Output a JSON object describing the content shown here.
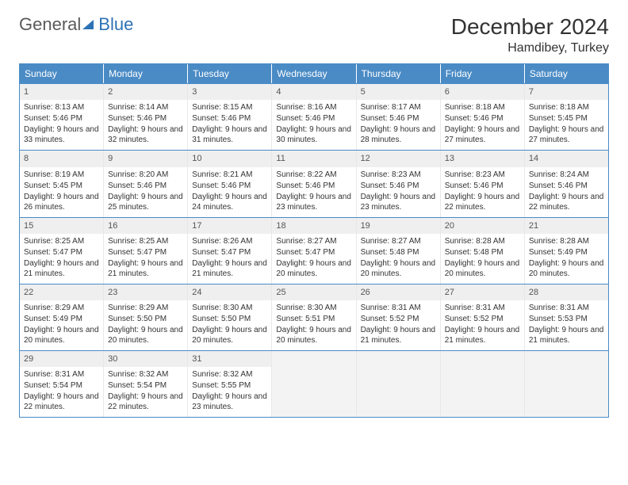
{
  "brand": {
    "part1": "General",
    "part2": "Blue"
  },
  "title": "December 2024",
  "location": "Hamdibey, Turkey",
  "colors": {
    "header_bg": "#4a8bc5",
    "header_text": "#ffffff",
    "border": "#4a8bc5",
    "daynum_bg": "#efefef",
    "text": "#333333",
    "logo_gray": "#5a5a5a",
    "logo_blue": "#2d72b5"
  },
  "day_names": [
    "Sunday",
    "Monday",
    "Tuesday",
    "Wednesday",
    "Thursday",
    "Friday",
    "Saturday"
  ],
  "weeks": [
    [
      {
        "n": "1",
        "sr": "Sunrise: 8:13 AM",
        "ss": "Sunset: 5:46 PM",
        "dl": "Daylight: 9 hours and 33 minutes."
      },
      {
        "n": "2",
        "sr": "Sunrise: 8:14 AM",
        "ss": "Sunset: 5:46 PM",
        "dl": "Daylight: 9 hours and 32 minutes."
      },
      {
        "n": "3",
        "sr": "Sunrise: 8:15 AM",
        "ss": "Sunset: 5:46 PM",
        "dl": "Daylight: 9 hours and 31 minutes."
      },
      {
        "n": "4",
        "sr": "Sunrise: 8:16 AM",
        "ss": "Sunset: 5:46 PM",
        "dl": "Daylight: 9 hours and 30 minutes."
      },
      {
        "n": "5",
        "sr": "Sunrise: 8:17 AM",
        "ss": "Sunset: 5:46 PM",
        "dl": "Daylight: 9 hours and 28 minutes."
      },
      {
        "n": "6",
        "sr": "Sunrise: 8:18 AM",
        "ss": "Sunset: 5:46 PM",
        "dl": "Daylight: 9 hours and 27 minutes."
      },
      {
        "n": "7",
        "sr": "Sunrise: 8:18 AM",
        "ss": "Sunset: 5:45 PM",
        "dl": "Daylight: 9 hours and 27 minutes."
      }
    ],
    [
      {
        "n": "8",
        "sr": "Sunrise: 8:19 AM",
        "ss": "Sunset: 5:45 PM",
        "dl": "Daylight: 9 hours and 26 minutes."
      },
      {
        "n": "9",
        "sr": "Sunrise: 8:20 AM",
        "ss": "Sunset: 5:46 PM",
        "dl": "Daylight: 9 hours and 25 minutes."
      },
      {
        "n": "10",
        "sr": "Sunrise: 8:21 AM",
        "ss": "Sunset: 5:46 PM",
        "dl": "Daylight: 9 hours and 24 minutes."
      },
      {
        "n": "11",
        "sr": "Sunrise: 8:22 AM",
        "ss": "Sunset: 5:46 PM",
        "dl": "Daylight: 9 hours and 23 minutes."
      },
      {
        "n": "12",
        "sr": "Sunrise: 8:23 AM",
        "ss": "Sunset: 5:46 PM",
        "dl": "Daylight: 9 hours and 23 minutes."
      },
      {
        "n": "13",
        "sr": "Sunrise: 8:23 AM",
        "ss": "Sunset: 5:46 PM",
        "dl": "Daylight: 9 hours and 22 minutes."
      },
      {
        "n": "14",
        "sr": "Sunrise: 8:24 AM",
        "ss": "Sunset: 5:46 PM",
        "dl": "Daylight: 9 hours and 22 minutes."
      }
    ],
    [
      {
        "n": "15",
        "sr": "Sunrise: 8:25 AM",
        "ss": "Sunset: 5:47 PM",
        "dl": "Daylight: 9 hours and 21 minutes."
      },
      {
        "n": "16",
        "sr": "Sunrise: 8:25 AM",
        "ss": "Sunset: 5:47 PM",
        "dl": "Daylight: 9 hours and 21 minutes."
      },
      {
        "n": "17",
        "sr": "Sunrise: 8:26 AM",
        "ss": "Sunset: 5:47 PM",
        "dl": "Daylight: 9 hours and 21 minutes."
      },
      {
        "n": "18",
        "sr": "Sunrise: 8:27 AM",
        "ss": "Sunset: 5:47 PM",
        "dl": "Daylight: 9 hours and 20 minutes."
      },
      {
        "n": "19",
        "sr": "Sunrise: 8:27 AM",
        "ss": "Sunset: 5:48 PM",
        "dl": "Daylight: 9 hours and 20 minutes."
      },
      {
        "n": "20",
        "sr": "Sunrise: 8:28 AM",
        "ss": "Sunset: 5:48 PM",
        "dl": "Daylight: 9 hours and 20 minutes."
      },
      {
        "n": "21",
        "sr": "Sunrise: 8:28 AM",
        "ss": "Sunset: 5:49 PM",
        "dl": "Daylight: 9 hours and 20 minutes."
      }
    ],
    [
      {
        "n": "22",
        "sr": "Sunrise: 8:29 AM",
        "ss": "Sunset: 5:49 PM",
        "dl": "Daylight: 9 hours and 20 minutes."
      },
      {
        "n": "23",
        "sr": "Sunrise: 8:29 AM",
        "ss": "Sunset: 5:50 PM",
        "dl": "Daylight: 9 hours and 20 minutes."
      },
      {
        "n": "24",
        "sr": "Sunrise: 8:30 AM",
        "ss": "Sunset: 5:50 PM",
        "dl": "Daylight: 9 hours and 20 minutes."
      },
      {
        "n": "25",
        "sr": "Sunrise: 8:30 AM",
        "ss": "Sunset: 5:51 PM",
        "dl": "Daylight: 9 hours and 20 minutes."
      },
      {
        "n": "26",
        "sr": "Sunrise: 8:31 AM",
        "ss": "Sunset: 5:52 PM",
        "dl": "Daylight: 9 hours and 21 minutes."
      },
      {
        "n": "27",
        "sr": "Sunrise: 8:31 AM",
        "ss": "Sunset: 5:52 PM",
        "dl": "Daylight: 9 hours and 21 minutes."
      },
      {
        "n": "28",
        "sr": "Sunrise: 8:31 AM",
        "ss": "Sunset: 5:53 PM",
        "dl": "Daylight: 9 hours and 21 minutes."
      }
    ],
    [
      {
        "n": "29",
        "sr": "Sunrise: 8:31 AM",
        "ss": "Sunset: 5:54 PM",
        "dl": "Daylight: 9 hours and 22 minutes."
      },
      {
        "n": "30",
        "sr": "Sunrise: 8:32 AM",
        "ss": "Sunset: 5:54 PM",
        "dl": "Daylight: 9 hours and 22 minutes."
      },
      {
        "n": "31",
        "sr": "Sunrise: 8:32 AM",
        "ss": "Sunset: 5:55 PM",
        "dl": "Daylight: 9 hours and 23 minutes."
      },
      {
        "empty": true
      },
      {
        "empty": true
      },
      {
        "empty": true
      },
      {
        "empty": true
      }
    ]
  ]
}
